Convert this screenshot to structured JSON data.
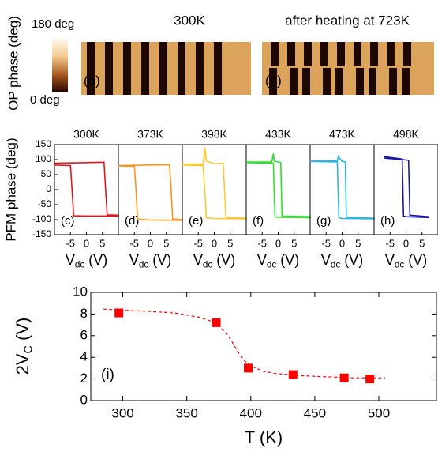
{
  "phase_maps": {
    "colorbar_label": "OP phase (deg)",
    "colorbar_max": "180 deg",
    "colorbar_min": "0 deg",
    "panels": [
      {
        "title": "300K",
        "label": "(a)"
      },
      {
        "title": "after heating at 723K",
        "label": "(b)"
      }
    ]
  },
  "chart_data": [
    {
      "type": "line",
      "title": "300K",
      "annotation": "(c)",
      "ylabel": "PFM phase (deg)",
      "xlabel": [
        "V",
        "dc",
        " (V)"
      ],
      "xlim": [
        -10,
        10
      ],
      "xticks": [
        -5,
        0,
        5
      ],
      "ylim": [
        -150,
        150
      ],
      "yticks": [
        150,
        100,
        50,
        0,
        -50,
        -100,
        -150
      ],
      "series": [
        {
          "color": "#e8141c",
          "x": [
            -10,
            0,
            5.5,
            6,
            6.5,
            10,
            10,
            0,
            -4,
            -4.5,
            -5,
            -10
          ],
          "values": [
            88,
            90,
            91,
            0,
            -84,
            -85,
            -88,
            -88,
            -87,
            0,
            80,
            82
          ]
        }
      ]
    },
    {
      "type": "line",
      "title": "373K",
      "annotation": "(d)",
      "xlabel": [
        "V",
        "dc",
        " (V)"
      ],
      "xlim": [
        -10,
        10
      ],
      "xticks": [
        -5,
        0,
        5
      ],
      "ylim": [
        -150,
        150
      ],
      "series": [
        {
          "color": "#f7941d",
          "x": [
            -10,
            0,
            6,
            6.5,
            7,
            10,
            10,
            0,
            -4,
            -4.5,
            -5,
            -10
          ],
          "values": [
            80,
            82,
            83,
            0,
            -98,
            -100,
            -102,
            -101,
            -99,
            0,
            78,
            79
          ]
        }
      ]
    },
    {
      "type": "line",
      "title": "398K",
      "annotation": "(e)",
      "xlabel": [
        "V",
        "dc",
        " (V)"
      ],
      "xlim": [
        -10,
        10
      ],
      "xticks": [
        -5,
        0,
        5
      ],
      "ylim": [
        -150,
        150
      ],
      "series": [
        {
          "color": "#fdc82f",
          "x": [
            -10,
            -3.5,
            -3,
            -2.5,
            0,
            2.8,
            3.2,
            3.6,
            10,
            10,
            0,
            -2.5,
            -3,
            -3.5,
            -10
          ],
          "values": [
            85,
            84,
            140,
            95,
            86,
            88,
            0,
            -92,
            -95,
            -97,
            -96,
            -94,
            0,
            80,
            82
          ]
        }
      ]
    },
    {
      "type": "line",
      "title": "433K",
      "annotation": "(f)",
      "xlabel": [
        "V",
        "dc",
        " (V)"
      ],
      "xlim": [
        -10,
        10
      ],
      "xticks": [
        -5,
        0,
        5
      ],
      "ylim": [
        -150,
        150
      ],
      "series": [
        {
          "color": "#2ee02e",
          "x": [
            -10,
            -2,
            -1.5,
            -1.2,
            0,
            0.8,
            1.2,
            10,
            10,
            0,
            -1,
            -1.5,
            -10
          ],
          "values": [
            92,
            92,
            120,
            95,
            92,
            90,
            -88,
            -90,
            -93,
            -92,
            -90,
            88,
            90
          ]
        }
      ]
    },
    {
      "type": "line",
      "title": "473K",
      "annotation": "(g)",
      "xlabel": [
        "V",
        "dc",
        " (V)"
      ],
      "xlim": [
        -10,
        10
      ],
      "xticks": [
        -5,
        0,
        5
      ],
      "ylim": [
        -150,
        150
      ],
      "series": [
        {
          "color": "#29b6e8",
          "x": [
            -10,
            -1.5,
            -1.2,
            0,
            1,
            1.3,
            10,
            10,
            0,
            -1,
            -1.5,
            -10
          ],
          "values": [
            95,
            96,
            110,
            94,
            93,
            -92,
            -95,
            -97,
            -96,
            -94,
            92,
            94
          ]
        }
      ]
    },
    {
      "type": "line",
      "title": "498K",
      "annotation": "(h)",
      "xlabel": [
        "V",
        "dc",
        " (V)"
      ],
      "xlim": [
        -10,
        10
      ],
      "xticks": [
        -5,
        0,
        5
      ],
      "ylim": [
        -150,
        150
      ],
      "series": [
        {
          "color": "#1a1aa8",
          "x": [
            -7,
            -1,
            0.8,
            1.2,
            7,
            7,
            0,
            -0.8,
            -1.2,
            -7
          ],
          "values": [
            105,
            100,
            98,
            -85,
            -90,
            -93,
            -90,
            -88,
            102,
            110
          ]
        }
      ]
    },
    {
      "type": "scatter",
      "annotation": "(i)",
      "xlabel": "T (K)",
      "ylabel": [
        "2V",
        "C",
        " (V)"
      ],
      "xlim": [
        275,
        545
      ],
      "xticks": [
        300,
        350,
        400,
        450,
        500
      ],
      "ylim": [
        0,
        10
      ],
      "yticks": [
        0,
        2,
        4,
        6,
        8,
        10
      ],
      "series": [
        {
          "color": "#ff0000",
          "marker": "square",
          "x": [
            297,
            373,
            398,
            433,
            473,
            493
          ],
          "values": [
            8.1,
            7.2,
            3.0,
            2.4,
            2.1,
            2.0
          ]
        },
        {
          "color": "#ff0000",
          "style": "dashed",
          "x": [
            285,
            300,
            320,
            340,
            360,
            370,
            380,
            385,
            390,
            395,
            400,
            410,
            420,
            440,
            460,
            480,
            505
          ],
          "values": [
            8.45,
            8.35,
            8.25,
            8.1,
            7.7,
            7.3,
            6.4,
            5.5,
            4.5,
            3.7,
            3.2,
            2.7,
            2.5,
            2.3,
            2.2,
            2.1,
            2.1
          ]
        }
      ]
    }
  ]
}
